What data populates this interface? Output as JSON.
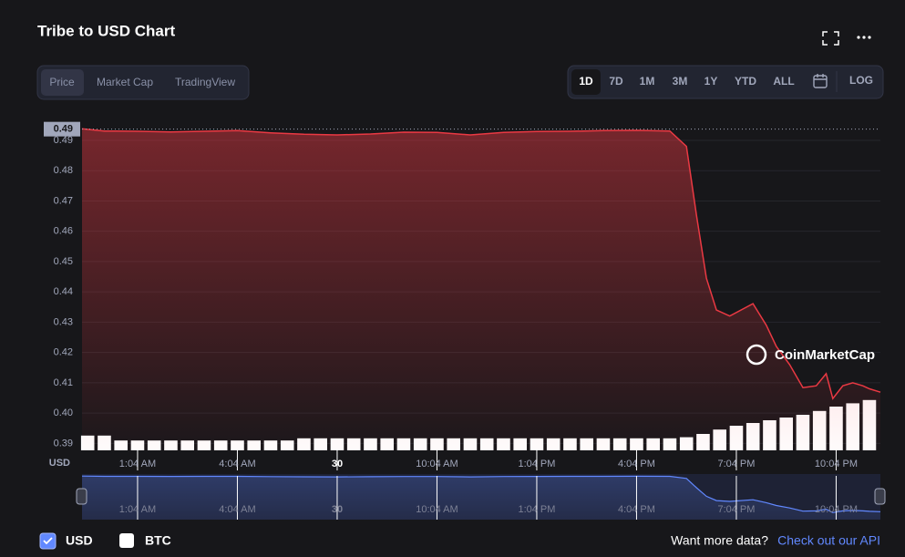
{
  "header": {
    "title": "Tribe to USD Chart"
  },
  "tabs": [
    "Price",
    "Market Cap",
    "TradingView"
  ],
  "ranges": [
    "1D",
    "7D",
    "1M",
    "3M",
    "1Y",
    "YTD",
    "ALL"
  ],
  "log": "LOG",
  "compare": "BTC",
  "footer": {
    "text": "Want more data?",
    "link": "Check out our API"
  },
  "chart_data": {
    "type": "line",
    "y_label": "USD",
    "watermark": "CoinMarketCap",
    "reference": {
      "value": 0.4937,
      "label": "0.49"
    },
    "x": [
      -0.67,
      0,
      1,
      2,
      3,
      4,
      5,
      6,
      7,
      8,
      9,
      10,
      11,
      12,
      13,
      14,
      15,
      16,
      17,
      17.5,
      17.8,
      18.1,
      18.4,
      18.8,
      19.5,
      19.9,
      20.2,
      20.6,
      21,
      21.4,
      21.7,
      21.9,
      22.2,
      22.5,
      22.8,
      23.0,
      23.33
    ],
    "series": [
      {
        "name": "USD",
        "color": "#ea3943",
        "values": [
          0.4938,
          0.4931,
          0.493,
          0.4928,
          0.493,
          0.4932,
          0.4925,
          0.492,
          0.4918,
          0.4921,
          0.4927,
          0.4926,
          0.4918,
          0.4926,
          0.4929,
          0.493,
          0.4932,
          0.4933,
          0.4931,
          0.488,
          0.4653,
          0.4445,
          0.434,
          0.432,
          0.4361,
          0.429,
          0.422,
          0.416,
          0.4084,
          0.409,
          0.413,
          0.4048,
          0.409,
          0.41,
          0.409,
          0.408,
          0.4069
        ]
      }
    ],
    "xlim": [
      -0.67,
      23.33
    ],
    "xticks": [
      {
        "value": 1,
        "label": "1:04 AM"
      },
      {
        "value": 4,
        "label": "4:04 AM"
      },
      {
        "value": 7,
        "label": "30"
      },
      {
        "value": 10,
        "label": "10:04 AM"
      },
      {
        "value": 13,
        "label": "1:04 PM"
      },
      {
        "value": 16,
        "label": "4:04 PM"
      },
      {
        "value": 19,
        "label": "7:04 PM"
      },
      {
        "value": 22,
        "label": "10:04 PM"
      }
    ],
    "ylim": [
      0.3877,
      0.4942
    ],
    "yticks": [
      {
        "value": 0.39,
        "label": "0.39"
      },
      {
        "value": 0.4,
        "label": "0.40"
      },
      {
        "value": 0.41,
        "label": "0.41"
      },
      {
        "value": 0.42,
        "label": "0.42"
      },
      {
        "value": 0.43,
        "label": "0.43"
      },
      {
        "value": 0.44,
        "label": "0.44"
      },
      {
        "value": 0.45,
        "label": "0.45"
      },
      {
        "value": 0.46,
        "label": "0.46"
      },
      {
        "value": 0.47,
        "label": "0.47"
      },
      {
        "value": 0.48,
        "label": "0.48"
      },
      {
        "value": 0.49,
        "label": "0.49"
      }
    ],
    "grid": true,
    "volume": {
      "color": "#ffffff",
      "vlim": [
        0,
        100
      ],
      "x": [
        -0.5,
        0,
        0.5,
        1,
        1.5,
        2,
        2.5,
        3,
        3.5,
        4,
        4.5,
        5,
        5.5,
        6,
        6.5,
        7,
        7.5,
        8,
        8.5,
        9,
        9.5,
        10,
        10.5,
        11,
        11.5,
        12,
        12.5,
        13,
        13.5,
        14,
        14.5,
        15,
        15.5,
        16,
        16.5,
        17,
        17.5,
        18,
        18.5,
        19,
        19.5,
        20,
        20.5,
        21,
        21.5,
        22,
        22.5,
        23
      ],
      "values": [
        27,
        27,
        18,
        18,
        18,
        18,
        18,
        18,
        18,
        18,
        18,
        18,
        18,
        22,
        22,
        22,
        22,
        22,
        22,
        22,
        22,
        22,
        22,
        22,
        22,
        22,
        22,
        22,
        22,
        22,
        22,
        22,
        22,
        22,
        22,
        22,
        24,
        30,
        38,
        45,
        50,
        55,
        60,
        65,
        72,
        80,
        86,
        92
      ]
    },
    "navigator_color": "#6188ff"
  }
}
